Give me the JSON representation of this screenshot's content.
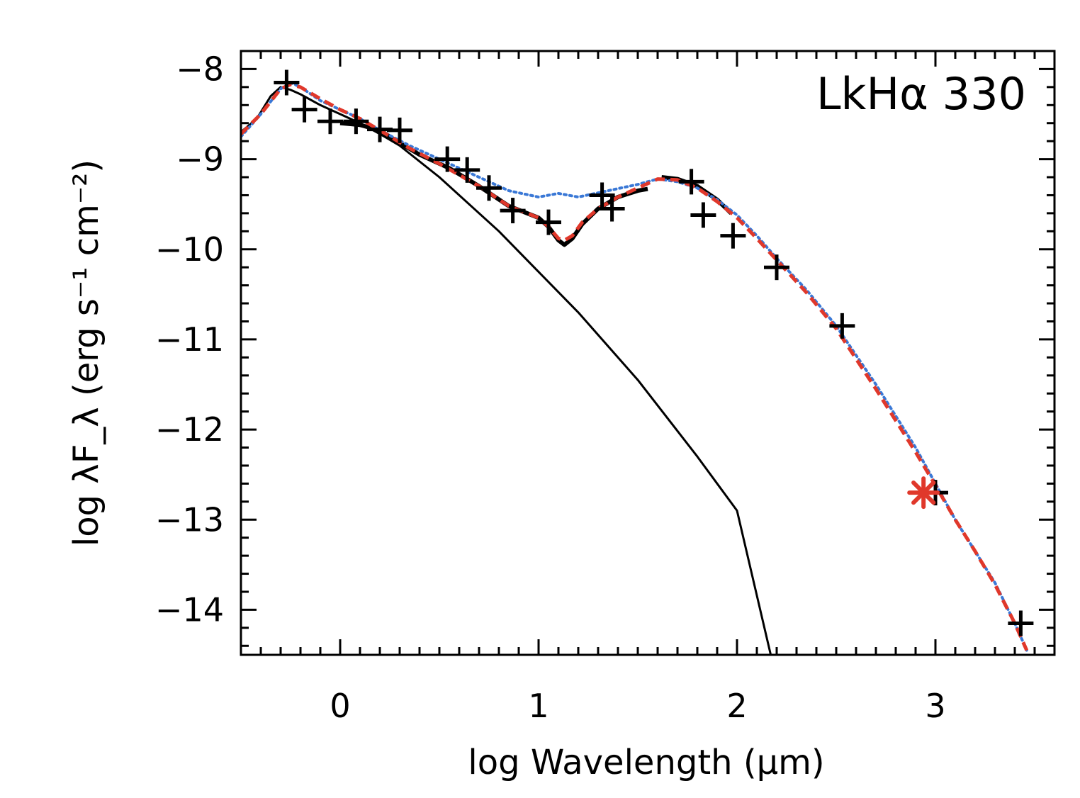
{
  "chart_data": {
    "type": "line",
    "label": "LkHα 330",
    "xlabel": "log Wavelength (μm)",
    "ylabel": "log λF_λ (erg s⁻¹ cm⁻²)",
    "xlim": [
      -0.5,
      3.6
    ],
    "ylim": [
      -14.5,
      -7.8
    ],
    "xticks": [
      0,
      1,
      2,
      3
    ],
    "xtick_labels": [
      "0",
      "1",
      "2",
      "3"
    ],
    "yticks": [
      -8,
      -9,
      -10,
      -11,
      -12,
      -13,
      -14
    ],
    "ytick_labels": [
      "−8",
      "−9",
      "−10",
      "−11",
      "−12",
      "−13",
      "−14"
    ],
    "grid": false,
    "series": [
      {
        "style": "solid-thin",
        "color": "#000000",
        "x": [
          -0.5,
          -0.42,
          -0.35,
          -0.3,
          -0.25,
          -0.2,
          -0.1,
          0.0,
          0.1,
          0.2,
          0.3,
          0.5,
          0.8,
          1.0,
          1.2,
          1.5,
          1.8,
          2.0,
          2.17
        ],
        "y": [
          -8.7,
          -8.55,
          -8.3,
          -8.2,
          -8.23,
          -8.28,
          -8.4,
          -8.5,
          -8.6,
          -8.72,
          -8.85,
          -9.2,
          -9.8,
          -10.25,
          -10.7,
          -11.45,
          -12.3,
          -12.9,
          -14.5
        ]
      },
      {
        "style": "solid-thick",
        "color": "#000000",
        "x": [
          0.0,
          0.1,
          0.2,
          0.3,
          0.4,
          0.55,
          0.7,
          0.85,
          1.0,
          1.05,
          1.1,
          1.13,
          1.17,
          1.22,
          1.3,
          1.4,
          1.5,
          1.55
        ],
        "y": [
          -8.6,
          -8.62,
          -8.68,
          -8.82,
          -8.95,
          -9.1,
          -9.3,
          -9.52,
          -9.65,
          -9.75,
          -9.9,
          -9.95,
          -9.88,
          -9.72,
          -9.55,
          -9.42,
          -9.35,
          -9.33
        ]
      },
      {
        "style": "solid-thick",
        "color": "#000000",
        "x": [
          1.62,
          1.7,
          1.8,
          1.9,
          1.97
        ],
        "y": [
          -9.2,
          -9.22,
          -9.3,
          -9.45,
          -9.6
        ]
      },
      {
        "style": "dotted",
        "color": "#3a78d6",
        "x": [
          -0.5,
          -0.4,
          -0.3,
          -0.25,
          -0.2,
          -0.1,
          0.0,
          0.1,
          0.2,
          0.35,
          0.5,
          0.7,
          0.85,
          1.0,
          1.1,
          1.2,
          1.35,
          1.5,
          1.6,
          1.7,
          1.8,
          1.9,
          2.0,
          2.1,
          2.2,
          2.35,
          2.5,
          2.7,
          2.9,
          3.0,
          3.1,
          3.2,
          3.3,
          3.4,
          3.46
        ],
        "y": [
          -8.75,
          -8.5,
          -8.22,
          -8.15,
          -8.2,
          -8.35,
          -8.45,
          -8.55,
          -8.68,
          -8.85,
          -9.0,
          -9.2,
          -9.35,
          -9.42,
          -9.38,
          -9.42,
          -9.35,
          -9.28,
          -9.22,
          -9.25,
          -9.32,
          -9.45,
          -9.62,
          -9.85,
          -10.1,
          -10.45,
          -10.85,
          -11.5,
          -12.2,
          -12.6,
          -13.0,
          -13.35,
          -13.7,
          -14.15,
          -14.45
        ]
      },
      {
        "style": "dashed",
        "color": "#e0382b",
        "x": [
          -0.5,
          -0.4,
          -0.3,
          -0.25,
          -0.2,
          -0.1,
          0.0,
          0.1,
          0.2,
          0.35,
          0.5,
          0.7,
          0.85,
          1.0,
          1.05,
          1.1,
          1.13,
          1.17,
          1.22,
          1.3,
          1.4,
          1.5,
          1.6,
          1.7,
          1.8,
          1.9,
          2.0,
          2.1,
          2.2,
          2.35,
          2.5,
          2.7,
          2.9,
          3.0,
          3.1,
          3.2,
          3.3,
          3.4,
          3.46
        ],
        "y": [
          -8.72,
          -8.5,
          -8.22,
          -8.17,
          -8.2,
          -8.33,
          -8.45,
          -8.55,
          -8.68,
          -8.88,
          -9.05,
          -9.3,
          -9.52,
          -9.65,
          -9.75,
          -9.88,
          -9.9,
          -9.85,
          -9.7,
          -9.55,
          -9.42,
          -9.32,
          -9.22,
          -9.23,
          -9.32,
          -9.47,
          -9.65,
          -9.88,
          -10.12,
          -10.48,
          -10.88,
          -11.55,
          -12.25,
          -12.62,
          -13.0,
          -13.35,
          -13.72,
          -14.15,
          -14.45
        ]
      }
    ],
    "points": [
      {
        "x": -0.27,
        "y": -8.15
      },
      {
        "x": -0.18,
        "y": -8.45
      },
      {
        "x": -0.05,
        "y": -8.58
      },
      {
        "x": 0.08,
        "y": -8.58
      },
      {
        "x": 0.2,
        "y": -8.67
      },
      {
        "x": 0.3,
        "y": -8.68
      },
      {
        "x": 0.54,
        "y": -9.0
      },
      {
        "x": 0.64,
        "y": -9.12
      },
      {
        "x": 0.75,
        "y": -9.32
      },
      {
        "x": 0.87,
        "y": -9.57
      },
      {
        "x": 1.05,
        "y": -9.7
      },
      {
        "x": 1.32,
        "y": -9.4
      },
      {
        "x": 1.37,
        "y": -9.55
      },
      {
        "x": 1.77,
        "y": -9.25
      },
      {
        "x": 1.83,
        "y": -9.62
      },
      {
        "x": 1.98,
        "y": -9.85
      },
      {
        "x": 2.2,
        "y": -10.2
      },
      {
        "x": 2.53,
        "y": -10.85
      },
      {
        "x": 3.0,
        "y": -12.7
      },
      {
        "x": 3.43,
        "y": -14.15
      }
    ],
    "highlight_point": {
      "x": 2.94,
      "y": -12.7,
      "color": "#e0382b"
    }
  }
}
